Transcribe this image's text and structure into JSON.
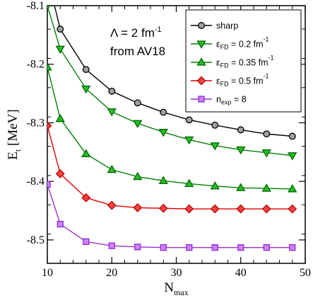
{
  "chart_data": {
    "type": "line",
    "xlabel_main": "N",
    "xlabel_sub": "max",
    "ylabel_main": "E",
    "ylabel_sub": "t",
    "ylabel_unit": " [MeV]",
    "xlim": [
      10,
      50
    ],
    "ylim": [
      -8.54,
      -8.1
    ],
    "xticks": [
      10,
      20,
      30,
      40,
      50
    ],
    "xtick_labels": [
      "10",
      "20",
      "30",
      "40",
      "50"
    ],
    "yticks": [
      -8.5,
      -8.4,
      -8.3,
      -8.2,
      -8.1
    ],
    "ytick_labels": [
      "-8.5",
      "-8.4",
      "-8.3",
      "-8.2",
      "-8.1"
    ],
    "annotation": {
      "line1_main": "Λ = 2 fm",
      "line1_sup": "-1",
      "line2": "from AV18"
    },
    "legend_position": "top-right",
    "series": [
      {
        "name": "sharp",
        "legend_parts": [
          {
            "t": "sharp",
            "s": ""
          }
        ],
        "marker": "circle",
        "line_color": "#000000",
        "marker_fill": "#a0a0a0",
        "marker_stroke": "#000000",
        "x": [
          10,
          12,
          16,
          20,
          24,
          28,
          32,
          36,
          40,
          44,
          48
        ],
        "y": [
          -8.05,
          -8.14,
          -8.209,
          -8.246,
          -8.266,
          -8.282,
          -8.295,
          -8.304,
          -8.312,
          -8.319,
          -8.323
        ]
      },
      {
        "name": "εFD = 0.2 fm-1",
        "legend_parts": [
          {
            "t": "ε",
            "s": ""
          },
          {
            "t": "FD",
            "s": "sub"
          },
          {
            "t": " = 0.2 fm",
            "s": ""
          },
          {
            "t": "-1",
            "s": "sup"
          }
        ],
        "marker": "triangle-down",
        "line_color": "#008000",
        "marker_fill": "#22c022",
        "marker_stroke": "#006400",
        "x": [
          10,
          12,
          16,
          20,
          24,
          28,
          32,
          36,
          40,
          44,
          48
        ],
        "y": [
          -8.1,
          -8.174,
          -8.242,
          -8.281,
          -8.301,
          -8.316,
          -8.329,
          -8.339,
          -8.346,
          -8.351,
          -8.356
        ]
      },
      {
        "name": "εFD = 0.35 fm-1",
        "legend_parts": [
          {
            "t": "ε",
            "s": ""
          },
          {
            "t": "FD",
            "s": "sub"
          },
          {
            "t": " = 0.35 fm",
            "s": ""
          },
          {
            "t": "-1",
            "s": "sup"
          }
        ],
        "marker": "triangle-up",
        "line_color": "#008000",
        "marker_fill": "#22c022",
        "marker_stroke": "#006400",
        "x": [
          10,
          12,
          16,
          20,
          24,
          28,
          32,
          36,
          40,
          44,
          48
        ],
        "y": [
          -8.205,
          -8.293,
          -8.353,
          -8.38,
          -8.392,
          -8.399,
          -8.404,
          -8.408,
          -8.411,
          -8.412,
          -8.413
        ]
      },
      {
        "name": "εFD = 0.5 fm-1",
        "legend_parts": [
          {
            "t": "ε",
            "s": ""
          },
          {
            "t": "FD",
            "s": "sub"
          },
          {
            "t": " = 0.5 fm",
            "s": ""
          },
          {
            "t": "-1",
            "s": "sup"
          }
        ],
        "marker": "diamond",
        "line_color": "#e00000",
        "marker_fill": "#ff4040",
        "marker_stroke": "#b00000",
        "x": [
          10,
          12,
          16,
          20,
          24,
          28,
          32,
          36,
          40,
          44,
          48
        ],
        "y": [
          -8.305,
          -8.387,
          -8.428,
          -8.441,
          -8.445,
          -8.446,
          -8.447,
          -8.447,
          -8.447,
          -8.447,
          -8.447
        ]
      },
      {
        "name": "nexp = 8",
        "legend_parts": [
          {
            "t": "n",
            "s": ""
          },
          {
            "t": "exp",
            "s": "sub"
          },
          {
            "t": " = 8",
            "s": ""
          }
        ],
        "marker": "square",
        "line_color": "#9932cc",
        "marker_fill": "#d080f0",
        "marker_stroke": "#8a2be2",
        "x": [
          10,
          12,
          16,
          20,
          24,
          28,
          32,
          36,
          40,
          44,
          48
        ],
        "y": [
          -8.405,
          -8.473,
          -8.503,
          -8.51,
          -8.512,
          -8.513,
          -8.513,
          -8.513,
          -8.513,
          -8.513,
          -8.513
        ]
      }
    ]
  }
}
